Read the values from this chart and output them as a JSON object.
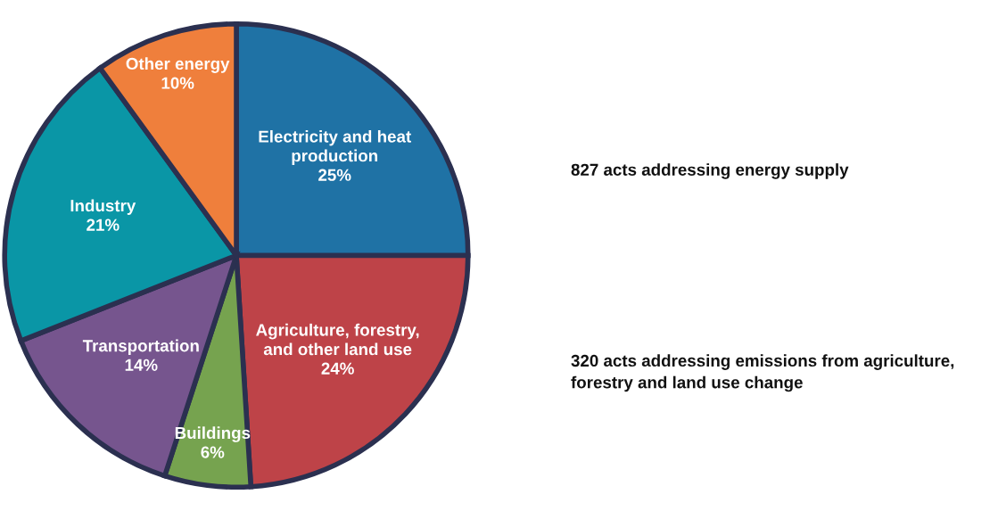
{
  "chart_data": {
    "type": "pie",
    "categories": [
      "Electricity and heat\nproduction",
      "Agriculture, forestry,\nand other land use",
      "Buildings",
      "Transportation",
      "Industry",
      "Other energy"
    ],
    "values": [
      25,
      24,
      6,
      14,
      21,
      10
    ],
    "value_labels": [
      "25%",
      "24%",
      "6%",
      "14%",
      "21%",
      "10%"
    ],
    "colors": [
      "#1f72a5",
      "#be4348",
      "#76a34f",
      "#76558e",
      "#0a96a6",
      "#ef7f3c"
    ],
    "annotations": [
      "827 acts addressing energy supply",
      "320 acts addressing emissions from agriculture,\nforestry and land use change"
    ]
  }
}
